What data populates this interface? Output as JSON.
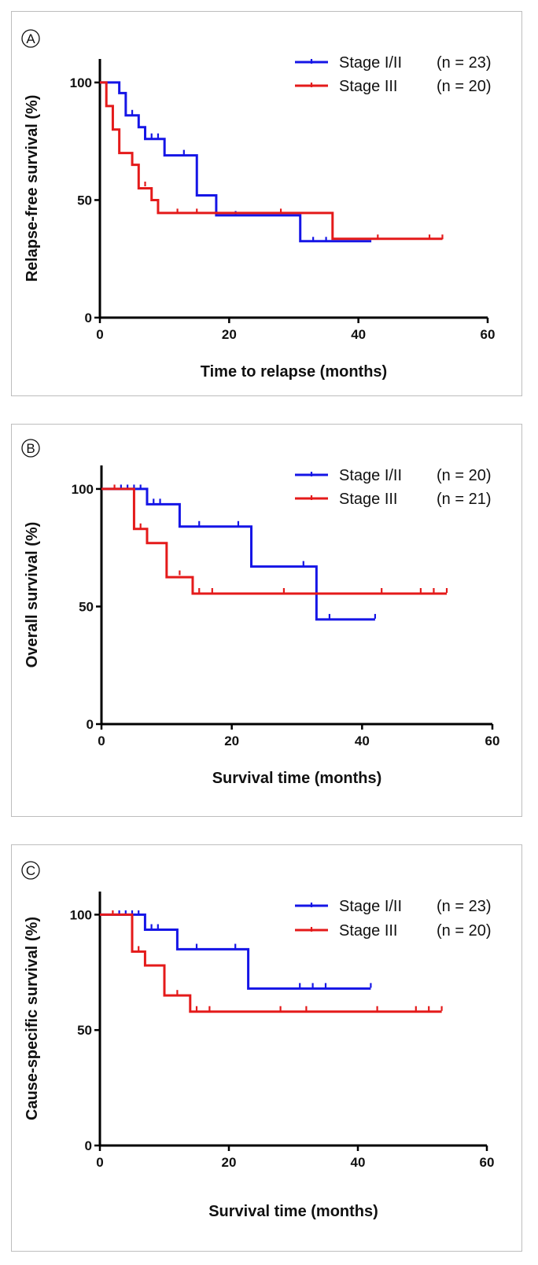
{
  "chart_data": [
    {
      "panel_label": "A",
      "type": "line",
      "subtype": "kaplan-meier",
      "title": "",
      "xlabel": "Time to relapse (months)",
      "ylabel": "Relapse-free survival (%)",
      "xlim": [
        0,
        60
      ],
      "ylim": [
        0,
        110
      ],
      "xticks": [
        0,
        20,
        40,
        60
      ],
      "yticks": [
        0,
        50,
        100
      ],
      "xtick_labels": [
        "0",
        "20",
        "40",
        "60"
      ],
      "ytick_labels": [
        "0",
        "50",
        "100"
      ],
      "legend_position": "top-right",
      "series": [
        {
          "name": "Stage I/II",
          "legend_label": "Stage I/II",
          "legend_n": "(n = 23)",
          "color": "#1515e6",
          "steps": [
            [
              0,
              100
            ],
            [
              2,
              100
            ],
            [
              3,
              95.5
            ],
            [
              4,
              86
            ],
            [
              5,
              86
            ],
            [
              6,
              81
            ],
            [
              7,
              76
            ],
            [
              10,
              69
            ],
            [
              15,
              52
            ],
            [
              18,
              43.5
            ],
            [
              31,
              32.5
            ],
            [
              42,
              32.5
            ]
          ],
          "censored": [
            [
              5,
              87
            ],
            [
              8,
              77
            ],
            [
              9,
              77
            ],
            [
              13,
              70
            ],
            [
              21,
              44
            ],
            [
              33,
              33
            ],
            [
              35,
              33
            ]
          ]
        },
        {
          "name": "Stage III",
          "legend_label": "Stage III",
          "legend_n": "(n = 20)",
          "color": "#e41a1a",
          "steps": [
            [
              0,
              100
            ],
            [
              1,
              90
            ],
            [
              2,
              80
            ],
            [
              3,
              70
            ],
            [
              5,
              65
            ],
            [
              6,
              55
            ],
            [
              8,
              50
            ],
            [
              9,
              44.5
            ],
            [
              36,
              33.5
            ],
            [
              53,
              33.5
            ]
          ],
          "censored": [
            [
              7,
              56.5
            ],
            [
              12,
              45
            ],
            [
              15,
              45
            ],
            [
              28,
              45
            ],
            [
              43,
              34
            ],
            [
              51,
              34
            ],
            [
              53,
              34
            ]
          ]
        }
      ]
    },
    {
      "panel_label": "B",
      "type": "line",
      "subtype": "kaplan-meier",
      "title": "",
      "xlabel": "Survival time (months)",
      "ylabel": "Overall survival  (%)",
      "xlim": [
        0,
        60
      ],
      "ylim": [
        0,
        110
      ],
      "xticks": [
        0,
        20,
        40,
        60
      ],
      "yticks": [
        0,
        50,
        100
      ],
      "xtick_labels": [
        "0",
        "20",
        "40",
        "60"
      ],
      "ytick_labels": [
        "0",
        "50",
        "100"
      ],
      "legend_position": "top-right",
      "series": [
        {
          "name": "Stage I/II",
          "legend_label": "Stage I/II",
          "legend_n": "(n = 20)",
          "color": "#1515e6",
          "steps": [
            [
              0,
              100
            ],
            [
              7,
              93.5
            ],
            [
              12,
              84
            ],
            [
              23,
              67
            ],
            [
              33,
              44.5
            ],
            [
              42,
              44.5
            ]
          ],
          "censored": [
            [
              3,
              100.5
            ],
            [
              4,
              100.5
            ],
            [
              5,
              100.5
            ],
            [
              6,
              100.5
            ],
            [
              8,
              94.5
            ],
            [
              9,
              94.5
            ],
            [
              15,
              85
            ],
            [
              21,
              85
            ],
            [
              31,
              68
            ],
            [
              35,
              45.5
            ],
            [
              42,
              45.5
            ]
          ]
        },
        {
          "name": "Stage III",
          "legend_label": "Stage III",
          "legend_n": "(n = 21)",
          "color": "#e41a1a",
          "steps": [
            [
              0,
              100
            ],
            [
              5,
              83
            ],
            [
              7,
              77
            ],
            [
              10,
              62.5
            ],
            [
              14,
              55.5
            ],
            [
              53,
              55.5
            ]
          ],
          "censored": [
            [
              2,
              100.5
            ],
            [
              6,
              84
            ],
            [
              12,
              64
            ],
            [
              15,
              56.5
            ],
            [
              17,
              56.5
            ],
            [
              28,
              56.5
            ],
            [
              43,
              56.5
            ],
            [
              49,
              56.5
            ],
            [
              51,
              56.5
            ],
            [
              53,
              56.5
            ]
          ]
        }
      ]
    },
    {
      "panel_label": "C",
      "type": "line",
      "subtype": "kaplan-meier",
      "title": "",
      "xlabel": "Survival time (months)",
      "ylabel": "Cause-specific survival (%)",
      "xlim": [
        0,
        60
      ],
      "ylim": [
        0,
        110
      ],
      "xticks": [
        0,
        20,
        40,
        60
      ],
      "yticks": [
        0,
        50,
        100
      ],
      "xtick_labels": [
        "0",
        "20",
        "40",
        "60"
      ],
      "ytick_labels": [
        "0",
        "50",
        "100"
      ],
      "legend_position": "top-right",
      "series": [
        {
          "name": "Stage I/II",
          "legend_label": "Stage I/II",
          "legend_n": "(n = 23)",
          "color": "#1515e6",
          "steps": [
            [
              0,
              100
            ],
            [
              7,
              93.5
            ],
            [
              12,
              85
            ],
            [
              23,
              68
            ],
            [
              42,
              68
            ]
          ],
          "censored": [
            [
              3,
              100.5
            ],
            [
              4,
              100.5
            ],
            [
              5,
              100.5
            ],
            [
              6,
              100.5
            ],
            [
              8,
              94.5
            ],
            [
              9,
              94.5
            ],
            [
              15,
              86
            ],
            [
              21,
              86
            ],
            [
              31,
              69
            ],
            [
              33,
              69
            ],
            [
              35,
              69
            ],
            [
              42,
              69
            ]
          ]
        },
        {
          "name": "Stage III",
          "legend_label": "Stage III",
          "legend_n": "(n = 20)",
          "color": "#e41a1a",
          "steps": [
            [
              0,
              100
            ],
            [
              5,
              84
            ],
            [
              7,
              78
            ],
            [
              10,
              65
            ],
            [
              14,
              58
            ],
            [
              53,
              58
            ]
          ],
          "censored": [
            [
              2,
              100.5
            ],
            [
              6,
              85
            ],
            [
              12,
              66
            ],
            [
              15,
              59
            ],
            [
              17,
              59
            ],
            [
              28,
              59
            ],
            [
              32,
              59
            ],
            [
              43,
              59
            ],
            [
              49,
              59
            ],
            [
              51,
              59
            ],
            [
              53,
              59
            ]
          ]
        }
      ]
    }
  ]
}
